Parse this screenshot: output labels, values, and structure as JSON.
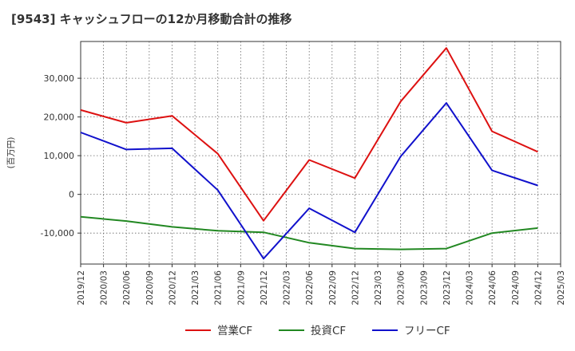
{
  "chart_data": {
    "type": "line",
    "title": "[9543]  キャッシュフローの12か月移動合計の推移",
    "xlabel": "",
    "ylabel": "(百万円)",
    "x": [
      "2019/12",
      "2020/03",
      "2020/06",
      "2020/09",
      "2020/12",
      "2021/03",
      "2021/06",
      "2021/09",
      "2021/12",
      "2022/03",
      "2022/06",
      "2022/09",
      "2022/12",
      "2023/03",
      "2023/06",
      "2023/09",
      "2023/12",
      "2024/03",
      "2024/06",
      "2024/09",
      "2024/12",
      "2025/03"
    ],
    "y_ticks": [
      -10000,
      0,
      10000,
      20000,
      30000
    ],
    "y_tick_labels": [
      "-10,000",
      "0",
      "10,000",
      "20,000",
      "30,000"
    ],
    "ylim": [
      -18000,
      39500
    ],
    "grid": true,
    "legend_position": "bottom",
    "series": [
      {
        "name": "営業CF",
        "color": "#dd1111",
        "points": [
          {
            "x": "2019/12",
            "y": 21800
          },
          {
            "x": "2020/06",
            "y": 18500
          },
          {
            "x": "2020/12",
            "y": 20300
          },
          {
            "x": "2021/06",
            "y": 10500
          },
          {
            "x": "2021/12",
            "y": -6800
          },
          {
            "x": "2022/06",
            "y": 8900
          },
          {
            "x": "2022/12",
            "y": 4200
          },
          {
            "x": "2023/06",
            "y": 24000
          },
          {
            "x": "2023/12",
            "y": 37800
          },
          {
            "x": "2024/06",
            "y": 16300
          },
          {
            "x": "2024/12",
            "y": 11000
          }
        ]
      },
      {
        "name": "投資CF",
        "color": "#228822",
        "points": [
          {
            "x": "2019/12",
            "y": -5800
          },
          {
            "x": "2020/06",
            "y": -6900
          },
          {
            "x": "2020/12",
            "y": -8400
          },
          {
            "x": "2021/06",
            "y": -9400
          },
          {
            "x": "2021/12",
            "y": -9800
          },
          {
            "x": "2022/06",
            "y": -12500
          },
          {
            "x": "2022/12",
            "y": -14000
          },
          {
            "x": "2023/06",
            "y": -14200
          },
          {
            "x": "2023/12",
            "y": -14000
          },
          {
            "x": "2024/06",
            "y": -10000
          },
          {
            "x": "2024/12",
            "y": -8700
          }
        ]
      },
      {
        "name": "フリーCF",
        "color": "#1111cc",
        "points": [
          {
            "x": "2019/12",
            "y": 16000
          },
          {
            "x": "2020/06",
            "y": 11600
          },
          {
            "x": "2020/12",
            "y": 11900
          },
          {
            "x": "2021/06",
            "y": 1100
          },
          {
            "x": "2021/12",
            "y": -16600
          },
          {
            "x": "2022/06",
            "y": -3600
          },
          {
            "x": "2022/12",
            "y": -9800
          },
          {
            "x": "2023/06",
            "y": 9800
          },
          {
            "x": "2023/12",
            "y": 23600
          },
          {
            "x": "2024/06",
            "y": 6200
          },
          {
            "x": "2024/12",
            "y": 2300
          }
        ]
      }
    ]
  }
}
